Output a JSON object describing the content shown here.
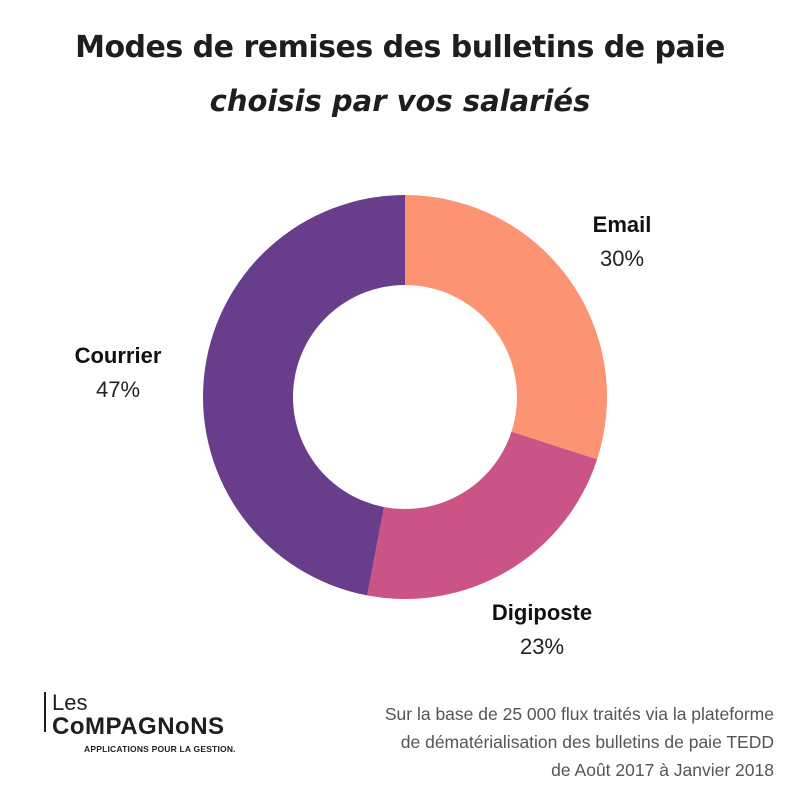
{
  "header": {
    "title": "Modes de remises des bulletins de paie",
    "subtitle": "choisis par vos salariés"
  },
  "chart_data": {
    "type": "pie",
    "donut": true,
    "slices": [
      {
        "label": "Email",
        "value": 30,
        "value_label": "30%",
        "color": "#fc9373"
      },
      {
        "label": "Digiposte",
        "value": 23,
        "value_label": "23%",
        "color": "#cb5486"
      },
      {
        "label": "Courrier",
        "value": 47,
        "value_label": "47%",
        "color": "#673d8c"
      }
    ]
  },
  "logo": {
    "line1": "Les",
    "brand": "CoMPAGNoNS",
    "tagline": "APPLICATIONS POUR LA GESTION."
  },
  "footnote": {
    "lines": [
      "Sur la base de 25 000 flux traités via la plateforme",
      "de dématérialisation des bulletins de paie TEDD",
      "de Août 2017 à Janvier 2018"
    ]
  }
}
